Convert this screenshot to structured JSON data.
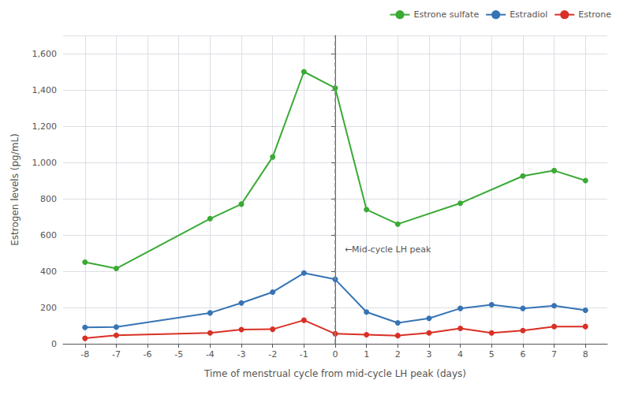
{
  "chart_data": {
    "type": "line",
    "x": [
      -8,
      -7,
      -6,
      -5,
      -4,
      -3,
      -2,
      -1,
      0,
      1,
      2,
      3,
      4,
      5,
      6,
      7,
      8
    ],
    "series": [
      {
        "name": "Estrone sulfate",
        "color": "#3aaa35",
        "values": [
          450,
          415,
          null,
          null,
          690,
          770,
          1030,
          1500,
          1410,
          740,
          660,
          null,
          775,
          null,
          925,
          955,
          900
        ]
      },
      {
        "name": "Estradiol",
        "color": "#3674b4",
        "values": [
          90,
          92,
          null,
          null,
          170,
          225,
          285,
          390,
          355,
          175,
          115,
          140,
          195,
          215,
          195,
          210,
          185
        ]
      },
      {
        "name": "Estrone",
        "color": "#d93025",
        "values": [
          30,
          47,
          null,
          null,
          60,
          78,
          80,
          130,
          55,
          50,
          45,
          60,
          85,
          60,
          73,
          95,
          95
        ]
      }
    ],
    "x_label": "Time of menstrual cycle from mid-cycle LH peak (days)",
    "y_label": "Estrogen levels (pg/mL)",
    "annotations": [
      {
        "text": "←Mid-cycle LH peak",
        "x": 0.3,
        "y": 520
      }
    ],
    "vlines": [
      {
        "x": 0,
        "line_style": "dashed"
      }
    ],
    "xlim": [
      -8.7,
      8.7
    ],
    "xticks": [
      -8,
      -7,
      -6,
      -5,
      -4,
      -3,
      -2,
      -1,
      0,
      1,
      2,
      3,
      4,
      5,
      6,
      7,
      8
    ],
    "ylim": [
      0,
      1700
    ],
    "yticks": [
      0,
      200,
      400,
      600,
      800,
      1000,
      1200,
      1400,
      1600
    ],
    "grid": true,
    "legend": "upper right",
    "marker": "circle"
  }
}
